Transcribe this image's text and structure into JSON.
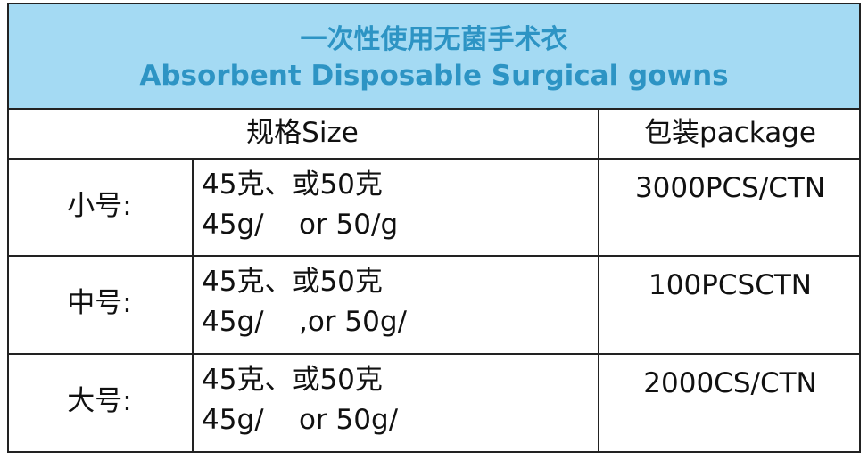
{
  "header": {
    "title_cn": "一次性使用无菌手术衣",
    "title_en": "Absorbent Disposable Surgical gowns"
  },
  "table": {
    "columns": [
      "规格Size",
      "包装package"
    ],
    "rows": [
      {
        "size": "小号:",
        "spec": [
          "45克、或50克",
          "45g/    or 50/g"
        ],
        "package": "3000PCS/CTN"
      },
      {
        "size": "中号:",
        "spec": [
          "45克、或50克",
          "45g/    ,or 50g/"
        ],
        "package": "100PCSCTN"
      },
      {
        "size": "大号:",
        "spec": [
          "45克、或50克",
          "45g/    or 50g/"
        ],
        "package": "2000CS/CTN"
      }
    ]
  }
}
